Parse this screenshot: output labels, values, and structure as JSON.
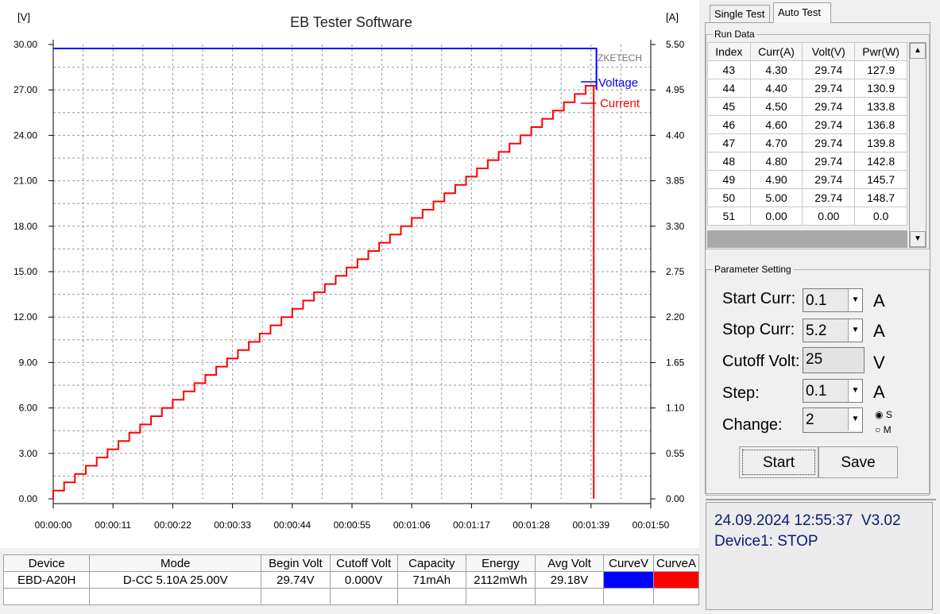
{
  "chart": {
    "title": "EB Tester Software",
    "left_unit": "[V]",
    "right_unit": "[A]",
    "brand": "ZKETECH",
    "legend": {
      "voltage": "Voltage",
      "current": "Current"
    },
    "y_left_ticks": [
      "30.00",
      "27.00",
      "24.00",
      "21.00",
      "18.00",
      "15.00",
      "12.00",
      "9.00",
      "6.00",
      "3.00",
      "0.00"
    ],
    "y_right_ticks": [
      "5.50",
      "4.95",
      "4.40",
      "3.85",
      "3.30",
      "2.75",
      "2.20",
      "1.65",
      "1.10",
      "0.55",
      "0.00"
    ],
    "x_ticks": [
      "00:00:00",
      "00:00:11",
      "00:00:22",
      "00:00:33",
      "00:00:44",
      "00:00:55",
      "00:01:06",
      "00:01:17",
      "00:01:28",
      "00:01:39",
      "00:01:50"
    ]
  },
  "chart_data": {
    "type": "line",
    "title": "EB Tester Software",
    "xlabel": "",
    "ylabel": "[V]",
    "y2label": "[A]",
    "xlim": [
      0,
      110
    ],
    "ylim": [
      0,
      30
    ],
    "y2lim": [
      0,
      5.5
    ],
    "grid": true,
    "legend_position": "top-right",
    "series": [
      {
        "name": "Voltage",
        "axis": "left",
        "color": "#0000ff",
        "points": [
          [
            0,
            29.74
          ],
          [
            100,
            29.74
          ],
          [
            100,
            27.0
          ]
        ]
      },
      {
        "name": "Current",
        "axis": "right",
        "color": "#ff0000",
        "step_s": 2,
        "step_a": 0.1,
        "start_a": 0.1,
        "end_a": 5.0,
        "note_end": [
          [
            99.5,
            5.0
          ],
          [
            99.5,
            0.0
          ]
        ]
      }
    ]
  },
  "summary": {
    "headers": [
      "Device",
      "Mode",
      "Begin Volt",
      "Cutoff Volt",
      "Capacity",
      "Energy",
      "Avg Volt",
      "CurveV",
      "CurveA"
    ],
    "row": [
      "EBD-A20H",
      "D-CC 5.10A 25.00V",
      "29.74V",
      "0.000V",
      "71mAh",
      "2112mWh",
      "29.18V"
    ],
    "curve_v_color": "#0000ff",
    "curve_a_color": "#ff0000"
  },
  "tabs": {
    "single": "Single Test",
    "auto": "Auto Test"
  },
  "run_data": {
    "legend": "Run Data",
    "headers": [
      "Index",
      "Curr(A)",
      "Volt(V)",
      "Pwr(W)"
    ],
    "rows": [
      [
        "43",
        "4.30",
        "29.74",
        "127.9"
      ],
      [
        "44",
        "4.40",
        "29.74",
        "130.9"
      ],
      [
        "45",
        "4.50",
        "29.74",
        "133.8"
      ],
      [
        "46",
        "4.60",
        "29.74",
        "136.8"
      ],
      [
        "47",
        "4.70",
        "29.74",
        "139.8"
      ],
      [
        "48",
        "4.80",
        "29.74",
        "142.8"
      ],
      [
        "49",
        "4.90",
        "29.74",
        "145.7"
      ],
      [
        "50",
        "5.00",
        "29.74",
        "148.7"
      ],
      [
        "51",
        "0.00",
        "0.00",
        "0.0"
      ]
    ]
  },
  "params": {
    "legend": "Parameter Setting",
    "start_curr_label": "Start Curr:",
    "start_curr_value": "0.1",
    "stop_curr_label": "Stop Curr:",
    "stop_curr_value": "5.2",
    "cutoff_volt_label": "Cutoff Volt:",
    "cutoff_volt_value": "25",
    "step_label": "Step:",
    "step_value": "0.1",
    "change_label": "Change:",
    "change_value": "2",
    "unit_a": "A",
    "unit_v": "V",
    "radio_s": "S",
    "radio_m": "M",
    "start_button": "Start",
    "save_button": "Save"
  },
  "status": {
    "datetime": "24.09.2024 12:55:37",
    "version": "V3.02",
    "device_state": "Device1: STOP"
  }
}
